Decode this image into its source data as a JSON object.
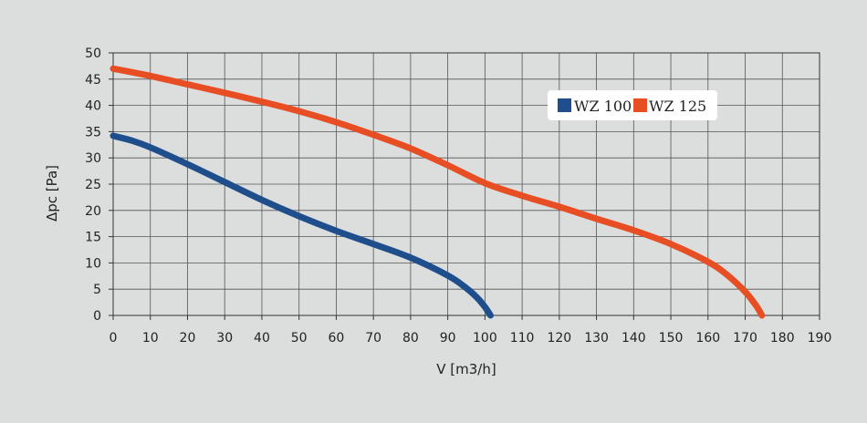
{
  "chart_data": {
    "type": "line",
    "title": "",
    "xlabel": "V [m3/h]",
    "ylabel": "Δpc [Pa]",
    "xlim": [
      0,
      190
    ],
    "ylim": [
      0,
      50
    ],
    "xticks": [
      0,
      10,
      20,
      30,
      40,
      50,
      60,
      70,
      80,
      90,
      100,
      110,
      120,
      130,
      140,
      150,
      160,
      170,
      180,
      190
    ],
    "yticks": [
      0,
      5,
      10,
      15,
      20,
      25,
      30,
      35,
      40,
      45,
      50
    ],
    "grid": true,
    "legend_position": "top-right",
    "series": [
      {
        "name": "WZ 100",
        "color": "#1f4e8c",
        "points": [
          [
            0,
            34.2
          ],
          [
            5,
            33.3
          ],
          [
            10,
            32
          ],
          [
            20,
            28.8
          ],
          [
            30,
            25.4
          ],
          [
            40,
            22
          ],
          [
            50,
            18.9
          ],
          [
            60,
            16.1
          ],
          [
            70,
            13.6
          ],
          [
            80,
            11
          ],
          [
            90,
            7.6
          ],
          [
            95,
            5.2
          ],
          [
            98,
            3.3
          ],
          [
            100,
            1.6
          ],
          [
            101.5,
            0
          ]
        ]
      },
      {
        "name": "WZ 125",
        "color": "#e84e24",
        "points": [
          [
            0,
            47
          ],
          [
            10,
            45.6
          ],
          [
            20,
            44
          ],
          [
            30,
            42.4
          ],
          [
            40,
            40.7
          ],
          [
            50,
            38.9
          ],
          [
            60,
            36.8
          ],
          [
            70,
            34.4
          ],
          [
            80,
            31.8
          ],
          [
            90,
            28.6
          ],
          [
            100,
            25.2
          ],
          [
            110,
            22.8
          ],
          [
            120,
            20.7
          ],
          [
            130,
            18.4
          ],
          [
            140,
            16.2
          ],
          [
            150,
            13.6
          ],
          [
            160,
            10.2
          ],
          [
            165,
            7.8
          ],
          [
            170,
            4.5
          ],
          [
            173,
            1.8
          ],
          [
            174.5,
            0
          ]
        ]
      }
    ]
  }
}
